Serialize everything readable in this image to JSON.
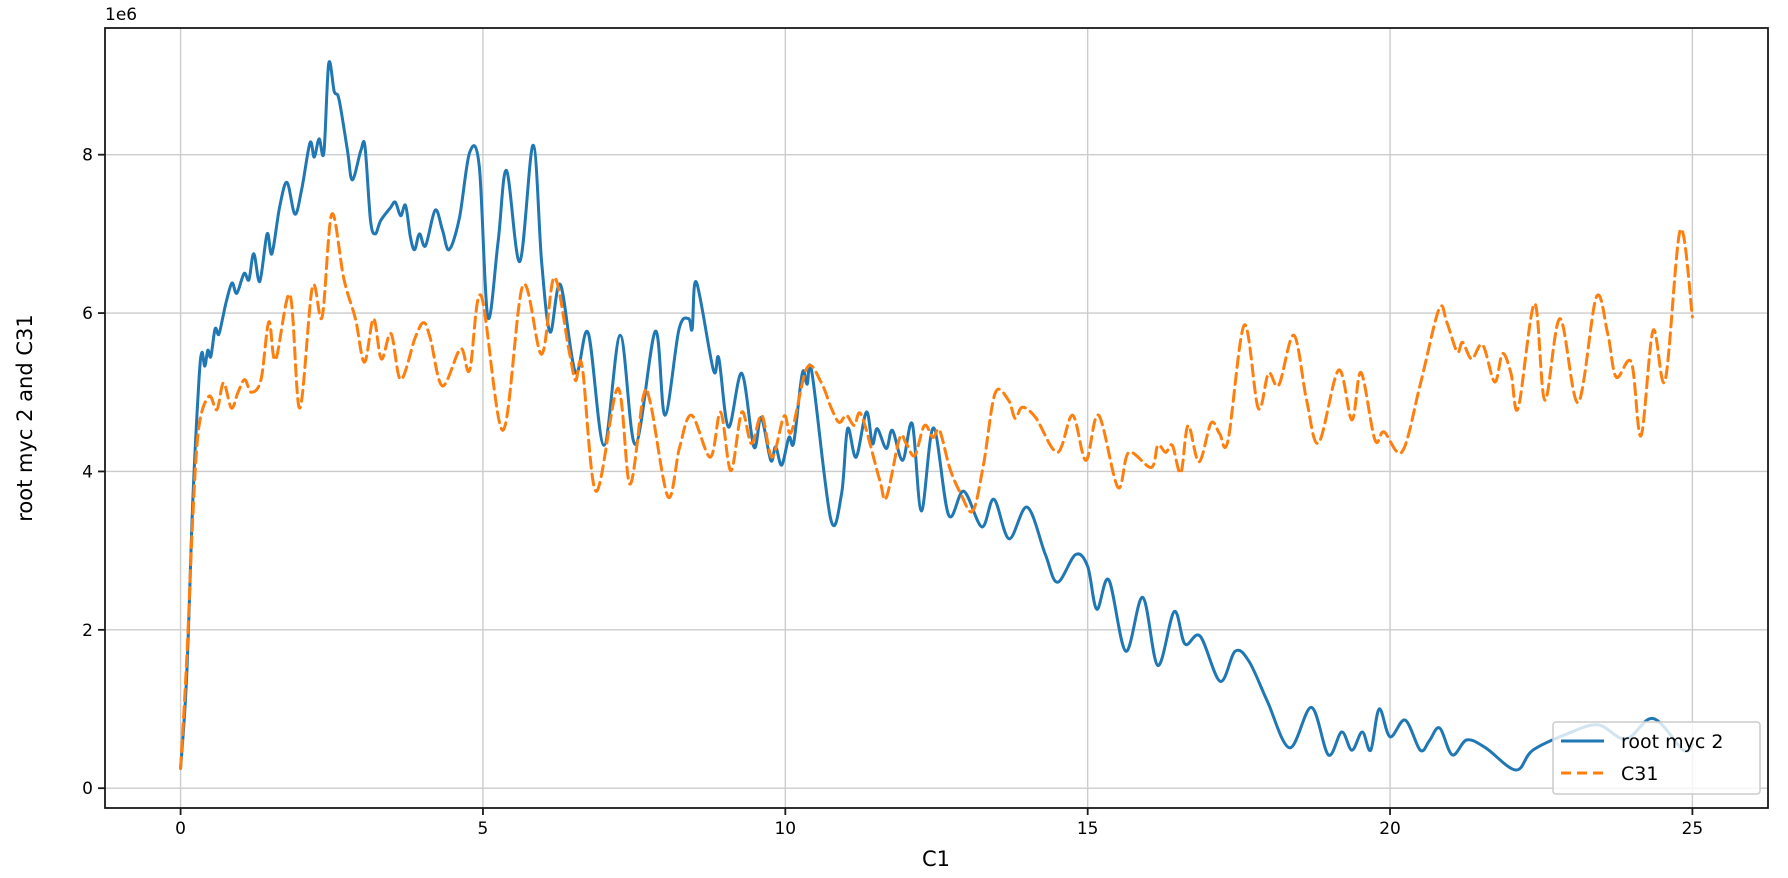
{
  "chart_data": {
    "type": "line",
    "title": "",
    "xlabel": "C1",
    "ylabel": "root myc 2 and C31",
    "y_offset_label": "1e6",
    "y_unit": "1e6",
    "xlim": [
      -1.25,
      26.25
    ],
    "ylim_millions": [
      -0.25,
      9.6
    ],
    "x_ticks": [
      0,
      5,
      10,
      15,
      20,
      25
    ],
    "y_ticks_millions": [
      0,
      2,
      4,
      6,
      8
    ],
    "grid": true,
    "grid_color": "#cccccc",
    "spine_color": "#1a1a1a",
    "legend_position": "lower right",
    "series": [
      {
        "name": "root myc 2",
        "color": "#1f77b4",
        "style": "solid",
        "points": [
          [
            0,
            0.25
          ],
          [
            0.1,
            1.4
          ],
          [
            0.2,
            3.6
          ],
          [
            0.3,
            5.1
          ],
          [
            0.35,
            5.5
          ],
          [
            0.4,
            5.33
          ],
          [
            0.45,
            5.53
          ],
          [
            0.5,
            5.45
          ],
          [
            0.57,
            5.8
          ],
          [
            0.63,
            5.73
          ],
          [
            0.7,
            5.95
          ],
          [
            0.76,
            6.16
          ],
          [
            0.85,
            6.38
          ],
          [
            0.93,
            6.25
          ],
          [
            1.05,
            6.5
          ],
          [
            1.13,
            6.42
          ],
          [
            1.21,
            6.75
          ],
          [
            1.31,
            6.4
          ],
          [
            1.43,
            7.0
          ],
          [
            1.51,
            6.75
          ],
          [
            1.64,
            7.35
          ],
          [
            1.76,
            7.65
          ],
          [
            1.89,
            7.25
          ],
          [
            2.0,
            7.55
          ],
          [
            2.14,
            8.15
          ],
          [
            2.21,
            7.97
          ],
          [
            2.29,
            8.2
          ],
          [
            2.37,
            8.03
          ],
          [
            2.45,
            9.15
          ],
          [
            2.54,
            8.8
          ],
          [
            2.62,
            8.7
          ],
          [
            2.76,
            8.05
          ],
          [
            2.84,
            7.68
          ],
          [
            2.98,
            8.05
          ],
          [
            3.05,
            8.1
          ],
          [
            3.14,
            7.17
          ],
          [
            3.22,
            7.0
          ],
          [
            3.31,
            7.17
          ],
          [
            3.47,
            7.33
          ],
          [
            3.55,
            7.4
          ],
          [
            3.64,
            7.23
          ],
          [
            3.72,
            7.36
          ],
          [
            3.8,
            6.96
          ],
          [
            3.87,
            6.8
          ],
          [
            3.95,
            7.0
          ],
          [
            4.05,
            6.85
          ],
          [
            4.21,
            7.3
          ],
          [
            4.33,
            7.05
          ],
          [
            4.44,
            6.8
          ],
          [
            4.61,
            7.2
          ],
          [
            4.78,
            8.03
          ],
          [
            4.94,
            7.85
          ],
          [
            5.08,
            5.95
          ],
          [
            5.25,
            6.9
          ],
          [
            5.39,
            7.8
          ],
          [
            5.61,
            6.65
          ],
          [
            5.83,
            8.12
          ],
          [
            5.97,
            6.65
          ],
          [
            6.11,
            5.76
          ],
          [
            6.28,
            6.36
          ],
          [
            6.53,
            5.25
          ],
          [
            6.74,
            5.75
          ],
          [
            7.0,
            4.33
          ],
          [
            7.27,
            5.72
          ],
          [
            7.52,
            4.34
          ],
          [
            7.85,
            5.77
          ],
          [
            8.01,
            4.71
          ],
          [
            8.24,
            5.79
          ],
          [
            8.4,
            5.93
          ],
          [
            8.46,
            5.8
          ],
          [
            8.53,
            6.39
          ],
          [
            8.81,
            5.28
          ],
          [
            8.9,
            5.43
          ],
          [
            9.06,
            4.56
          ],
          [
            9.28,
            5.24
          ],
          [
            9.48,
            4.31
          ],
          [
            9.6,
            4.68
          ],
          [
            9.76,
            4.14
          ],
          [
            9.84,
            4.31
          ],
          [
            9.94,
            4.08
          ],
          [
            10.06,
            4.43
          ],
          [
            10.14,
            4.37
          ],
          [
            10.28,
            5.24
          ],
          [
            10.36,
            5.1
          ],
          [
            10.44,
            5.25
          ],
          [
            10.75,
            3.4
          ],
          [
            10.93,
            3.72
          ],
          [
            11.03,
            4.54
          ],
          [
            11.17,
            4.18
          ],
          [
            11.34,
            4.75
          ],
          [
            11.44,
            4.35
          ],
          [
            11.52,
            4.54
          ],
          [
            11.67,
            4.29
          ],
          [
            11.77,
            4.52
          ],
          [
            11.94,
            4.14
          ],
          [
            12.1,
            4.6
          ],
          [
            12.25,
            3.5
          ],
          [
            12.45,
            4.55
          ],
          [
            12.7,
            3.45
          ],
          [
            12.95,
            3.75
          ],
          [
            13.25,
            3.3
          ],
          [
            13.45,
            3.65
          ],
          [
            13.7,
            3.15
          ],
          [
            14.0,
            3.55
          ],
          [
            14.3,
            2.95
          ],
          [
            14.5,
            2.6
          ],
          [
            14.8,
            2.95
          ],
          [
            15.0,
            2.8
          ],
          [
            15.15,
            2.26
          ],
          [
            15.35,
            2.63
          ],
          [
            15.63,
            1.73
          ],
          [
            15.91,
            2.41
          ],
          [
            16.16,
            1.55
          ],
          [
            16.43,
            2.23
          ],
          [
            16.61,
            1.82
          ],
          [
            16.86,
            1.92
          ],
          [
            17.19,
            1.35
          ],
          [
            17.44,
            1.73
          ],
          [
            17.67,
            1.6
          ],
          [
            17.97,
            1.1
          ],
          [
            18.34,
            0.51
          ],
          [
            18.7,
            1.02
          ],
          [
            18.98,
            0.42
          ],
          [
            19.2,
            0.71
          ],
          [
            19.37,
            0.48
          ],
          [
            19.54,
            0.71
          ],
          [
            19.68,
            0.48
          ],
          [
            19.82,
            1.0
          ],
          [
            20.0,
            0.65
          ],
          [
            20.25,
            0.86
          ],
          [
            20.5,
            0.48
          ],
          [
            20.65,
            0.6
          ],
          [
            20.82,
            0.76
          ],
          [
            21.03,
            0.42
          ],
          [
            21.27,
            0.61
          ],
          [
            21.58,
            0.51
          ],
          [
            22.08,
            0.23
          ],
          [
            22.36,
            0.48
          ],
          [
            22.94,
            0.69
          ],
          [
            23.44,
            0.8
          ],
          [
            23.9,
            0.62
          ],
          [
            24.35,
            0.88
          ],
          [
            24.85,
            0.48
          ],
          [
            25.0,
            0.55
          ]
        ]
      },
      {
        "name": "C31",
        "color": "#ff7f0e",
        "style": "dashed",
        "points": [
          [
            0,
            0.25
          ],
          [
            0.1,
            1.6
          ],
          [
            0.2,
            3.4
          ],
          [
            0.3,
            4.55
          ],
          [
            0.47,
            4.95
          ],
          [
            0.6,
            4.78
          ],
          [
            0.71,
            5.12
          ],
          [
            0.84,
            4.8
          ],
          [
            0.95,
            5.0
          ],
          [
            1.06,
            5.16
          ],
          [
            1.17,
            5.0
          ],
          [
            1.33,
            5.16
          ],
          [
            1.46,
            5.89
          ],
          [
            1.57,
            5.41
          ],
          [
            1.81,
            6.23
          ],
          [
            1.97,
            4.8
          ],
          [
            2.18,
            6.33
          ],
          [
            2.34,
            5.95
          ],
          [
            2.5,
            7.25
          ],
          [
            2.7,
            6.43
          ],
          [
            2.89,
            5.93
          ],
          [
            3.04,
            5.38
          ],
          [
            3.19,
            5.93
          ],
          [
            3.32,
            5.42
          ],
          [
            3.48,
            5.74
          ],
          [
            3.64,
            5.16
          ],
          [
            3.88,
            5.69
          ],
          [
            4.02,
            5.88
          ],
          [
            4.13,
            5.68
          ],
          [
            4.33,
            5.08
          ],
          [
            4.63,
            5.55
          ],
          [
            4.78,
            5.28
          ],
          [
            4.97,
            6.22
          ],
          [
            5.33,
            4.52
          ],
          [
            5.66,
            6.35
          ],
          [
            5.97,
            5.48
          ],
          [
            6.18,
            6.45
          ],
          [
            6.42,
            5.54
          ],
          [
            6.53,
            5.15
          ],
          [
            6.64,
            5.33
          ],
          [
            6.87,
            3.75
          ],
          [
            7.23,
            5.05
          ],
          [
            7.43,
            3.84
          ],
          [
            7.65,
            4.94
          ],
          [
            7.77,
            4.86
          ],
          [
            8.06,
            3.68
          ],
          [
            8.25,
            4.3
          ],
          [
            8.45,
            4.71
          ],
          [
            8.76,
            4.18
          ],
          [
            8.93,
            4.75
          ],
          [
            9.1,
            4.01
          ],
          [
            9.28,
            4.75
          ],
          [
            9.44,
            4.35
          ],
          [
            9.61,
            4.71
          ],
          [
            9.78,
            4.18
          ],
          [
            9.98,
            4.7
          ],
          [
            10.1,
            4.5
          ],
          [
            10.36,
            5.31
          ],
          [
            10.59,
            5.13
          ],
          [
            10.76,
            4.8
          ],
          [
            10.89,
            4.62
          ],
          [
            11.01,
            4.71
          ],
          [
            11.14,
            4.58
          ],
          [
            11.26,
            4.71
          ],
          [
            11.56,
            3.89
          ],
          [
            11.67,
            3.67
          ],
          [
            11.89,
            4.42
          ],
          [
            12.0,
            4.35
          ],
          [
            12.14,
            4.2
          ],
          [
            12.3,
            4.58
          ],
          [
            12.44,
            4.43
          ],
          [
            12.55,
            4.52
          ],
          [
            12.72,
            4.04
          ],
          [
            12.9,
            3.72
          ],
          [
            13.1,
            3.5
          ],
          [
            13.28,
            4.1
          ],
          [
            13.47,
            4.99
          ],
          [
            13.69,
            4.9
          ],
          [
            13.8,
            4.67
          ],
          [
            13.92,
            4.81
          ],
          [
            14.14,
            4.68
          ],
          [
            14.5,
            4.24
          ],
          [
            14.75,
            4.71
          ],
          [
            14.97,
            4.14
          ],
          [
            15.18,
            4.71
          ],
          [
            15.5,
            3.8
          ],
          [
            15.68,
            4.24
          ],
          [
            16.05,
            4.05
          ],
          [
            16.16,
            4.33
          ],
          [
            16.29,
            4.24
          ],
          [
            16.4,
            4.33
          ],
          [
            16.54,
            3.98
          ],
          [
            16.66,
            4.58
          ],
          [
            16.84,
            4.12
          ],
          [
            17.04,
            4.61
          ],
          [
            17.18,
            4.48
          ],
          [
            17.32,
            4.39
          ],
          [
            17.59,
            5.85
          ],
          [
            17.82,
            4.8
          ],
          [
            17.99,
            5.24
          ],
          [
            18.16,
            5.09
          ],
          [
            18.41,
            5.72
          ],
          [
            18.62,
            4.9
          ],
          [
            18.82,
            4.36
          ],
          [
            19.15,
            5.28
          ],
          [
            19.37,
            4.65
          ],
          [
            19.52,
            5.25
          ],
          [
            19.75,
            4.4
          ],
          [
            19.9,
            4.5
          ],
          [
            20.2,
            4.25
          ],
          [
            20.5,
            5.1
          ],
          [
            20.81,
            6.05
          ],
          [
            20.94,
            5.88
          ],
          [
            21.11,
            5.51
          ],
          [
            21.2,
            5.63
          ],
          [
            21.35,
            5.42
          ],
          [
            21.53,
            5.6
          ],
          [
            21.73,
            5.13
          ],
          [
            21.86,
            5.49
          ],
          [
            22.0,
            5.24
          ],
          [
            22.12,
            4.8
          ],
          [
            22.39,
            6.12
          ],
          [
            22.56,
            4.9
          ],
          [
            22.81,
            5.93
          ],
          [
            23.11,
            4.87
          ],
          [
            23.41,
            6.2
          ],
          [
            23.6,
            5.74
          ],
          [
            23.74,
            5.19
          ],
          [
            23.99,
            5.38
          ],
          [
            24.15,
            4.45
          ],
          [
            24.35,
            5.78
          ],
          [
            24.55,
            5.15
          ],
          [
            24.8,
            7.05
          ],
          [
            25.0,
            5.95
          ]
        ]
      }
    ]
  }
}
